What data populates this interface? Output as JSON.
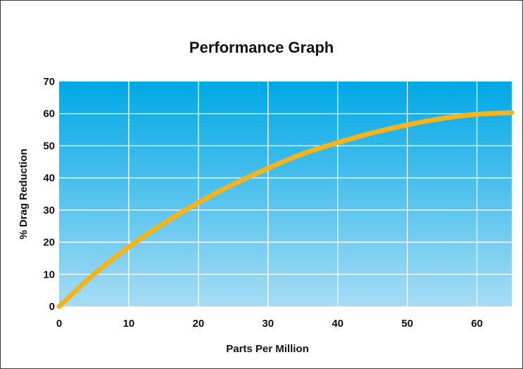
{
  "colors": {
    "plot_top": "#00a8e6",
    "plot_bottom": "#a6dcf4",
    "curve": "#f4b41a",
    "grid": "#ffffff"
  },
  "chart_data": {
    "type": "line",
    "title": "Performance Graph",
    "xlabel": "Parts Per Million",
    "ylabel": "% Drag Reduction",
    "xlim": [
      0,
      65
    ],
    "ylim": [
      0,
      70
    ],
    "x_ticks": [
      0,
      10,
      20,
      30,
      40,
      50,
      60
    ],
    "y_ticks": [
      0,
      10,
      20,
      30,
      40,
      50,
      60,
      70
    ],
    "grid": true,
    "series": [
      {
        "x": [
          0,
          5,
          10,
          15,
          20,
          25,
          30,
          35,
          40,
          45,
          50,
          55,
          60,
          65
        ],
        "y": [
          0,
          10,
          18.5,
          25.8,
          32.3,
          38,
          43,
          47.5,
          51,
          54,
          56.5,
          58.5,
          59.8,
          60.3
        ]
      }
    ]
  }
}
